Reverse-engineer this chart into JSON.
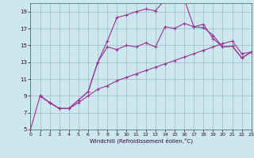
{
  "xlabel": "Windchill (Refroidissement éolien,°C)",
  "bg_color": "#cce8ee",
  "grid_color": "#99bbcc",
  "line_color": "#993399",
  "xlim": [
    0,
    23
  ],
  "ylim": [
    5,
    20
  ],
  "xticks": [
    0,
    1,
    2,
    3,
    4,
    5,
    6,
    7,
    8,
    9,
    10,
    11,
    12,
    13,
    14,
    15,
    16,
    17,
    18,
    19,
    20,
    21,
    22,
    23
  ],
  "yticks": [
    5,
    7,
    9,
    11,
    13,
    15,
    17,
    19
  ],
  "series": [
    {
      "x": [
        0,
        1,
        2,
        3,
        4,
        5,
        6,
        7,
        8,
        9,
        10,
        11,
        12,
        13,
        14,
        15,
        16,
        17,
        18,
        19,
        20,
        21,
        22,
        23
      ],
      "y": [
        5,
        9,
        8.2,
        7.5,
        7.5,
        8.2,
        9,
        9.8,
        10.2,
        10.8,
        11.2,
        11.6,
        12.0,
        12.4,
        12.8,
        13.2,
        13.6,
        14.0,
        14.4,
        14.8,
        15.2,
        15.5,
        14.0,
        14.2
      ],
      "markers": true
    },
    {
      "x": [
        1,
        2,
        3,
        4,
        5,
        6,
        7,
        8,
        9,
        10,
        11,
        12,
        13,
        14,
        15,
        16,
        17,
        18,
        19,
        20,
        21,
        22,
        23
      ],
      "y": [
        9,
        8.2,
        7.5,
        7.5,
        8.5,
        9.5,
        13.0,
        15.5,
        18.3,
        18.6,
        19.0,
        19.3,
        19.1,
        20.4,
        20.3,
        20.5,
        17.2,
        17.1,
        16.2,
        14.8,
        14.9,
        13.5,
        14.2
      ],
      "markers": true
    },
    {
      "x": [
        1,
        2,
        3,
        4,
        5,
        6,
        7,
        8,
        9,
        10,
        11,
        12,
        13,
        14,
        15,
        16,
        17,
        18,
        19,
        20,
        21,
        22,
        23
      ],
      "y": [
        9,
        8.2,
        7.5,
        7.5,
        8.5,
        9.5,
        13.0,
        14.8,
        14.5,
        15.0,
        14.8,
        15.3,
        14.8,
        17.2,
        17.0,
        17.6,
        17.2,
        17.5,
        15.8,
        14.8,
        14.9,
        13.5,
        14.2
      ],
      "markers": true
    }
  ]
}
